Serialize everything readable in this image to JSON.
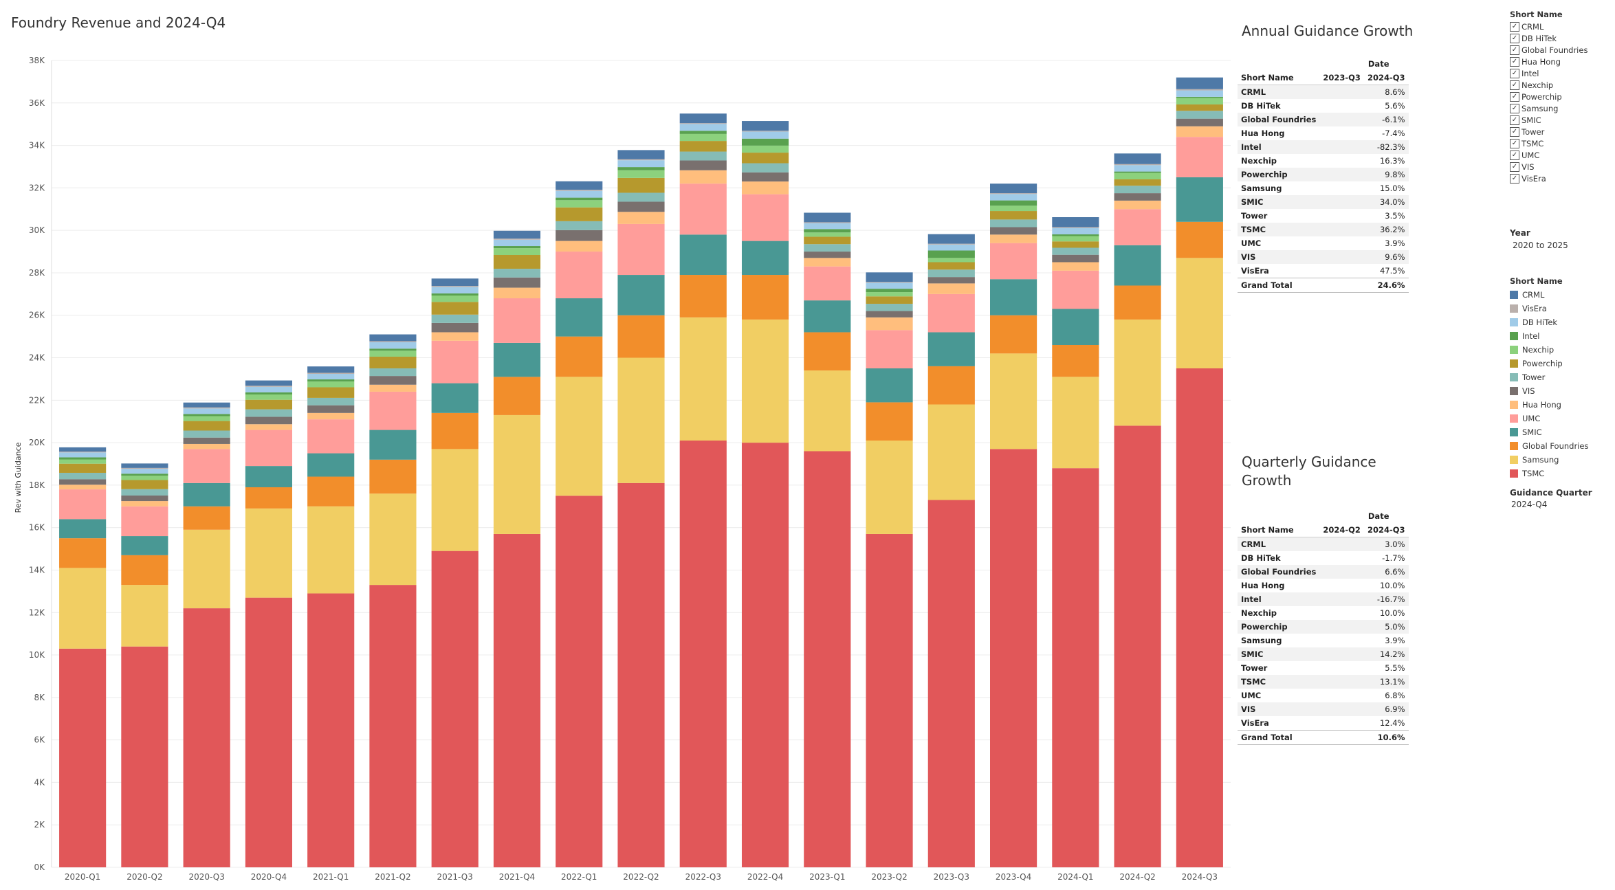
{
  "chart_data": {
    "type": "bar",
    "stacked": true,
    "title": "Foundry Revenue and 2024-Q4",
    "xlabel": "",
    "ylabel": "Rev with Guidance",
    "ylim": [
      0,
      38000
    ],
    "yticks": [
      0,
      2000,
      4000,
      6000,
      8000,
      10000,
      12000,
      14000,
      16000,
      18000,
      20000,
      22000,
      24000,
      26000,
      28000,
      30000,
      32000,
      34000,
      36000,
      38000
    ],
    "ytick_labels": [
      "0K",
      "2K",
      "4K",
      "6K",
      "8K",
      "10K",
      "12K",
      "14K",
      "16K",
      "18K",
      "20K",
      "22K",
      "24K",
      "26K",
      "28K",
      "30K",
      "32K",
      "34K",
      "36K",
      "38K"
    ],
    "categories": [
      "2020-Q1",
      "2020-Q2",
      "2020-Q3",
      "2020-Q4",
      "2021-Q1",
      "2021-Q2",
      "2021-Q3",
      "2021-Q4",
      "2022-Q1",
      "2022-Q2",
      "2022-Q3",
      "2022-Q4",
      "2023-Q1",
      "2023-Q2",
      "2023-Q3",
      "2023-Q4",
      "2024-Q1",
      "2024-Q2",
      "2024-Q3"
    ],
    "series": [
      {
        "name": "TSMC",
        "color": "#e15759",
        "values": [
          10300,
          10400,
          12200,
          12700,
          12900,
          13300,
          14900,
          15700,
          17500,
          18100,
          20100,
          20000,
          19600,
          15700,
          17300,
          19700,
          18800,
          20800,
          23500
        ]
      },
      {
        "name": "Samsung",
        "color": "#f1ce63",
        "values": [
          3800,
          2900,
          3700,
          4200,
          4100,
          4300,
          4800,
          5600,
          5600,
          5900,
          5800,
          5800,
          3800,
          4400,
          4500,
          4500,
          4300,
          5000,
          5200
        ]
      },
      {
        "name": "Global Foundries",
        "color": "#f28e2b",
        "values": [
          1400,
          1400,
          1100,
          1000,
          1400,
          1600,
          1700,
          1800,
          1900,
          2000,
          2000,
          2100,
          1800,
          1800,
          1800,
          1800,
          1500,
          1600,
          1700
        ]
      },
      {
        "name": "SMIC",
        "color": "#499894",
        "values": [
          900,
          900,
          1100,
          1000,
          1100,
          1400,
          1400,
          1600,
          1800,
          1900,
          1900,
          1600,
          1500,
          1600,
          1600,
          1700,
          1700,
          1900,
          2100
        ]
      },
      {
        "name": "UMC",
        "color": "#ff9d9a",
        "values": [
          1400,
          1400,
          1600,
          1700,
          1600,
          1800,
          2000,
          2100,
          2200,
          2400,
          2400,
          2200,
          1600,
          1800,
          1800,
          1700,
          1800,
          1700,
          1900
        ]
      },
      {
        "name": "Hua Hong",
        "color": "#ffbe7d",
        "values": [
          220,
          250,
          240,
          270,
          300,
          330,
          400,
          500,
          500,
          570,
          630,
          600,
          400,
          600,
          500,
          400,
          400,
          400,
          500
        ]
      },
      {
        "name": "VIS",
        "color": "#79706e",
        "values": [
          260,
          260,
          300,
          350,
          360,
          410,
          440,
          480,
          510,
          480,
          460,
          430,
          300,
          300,
          300,
          350,
          350,
          350,
          360
        ]
      },
      {
        "name": "Tower",
        "color": "#86bcb6",
        "values": [
          300,
          300,
          330,
          350,
          350,
          360,
          390,
          410,
          420,
          420,
          420,
          430,
          350,
          340,
          350,
          360,
          330,
          350,
          370
        ]
      },
      {
        "name": "Powerchip",
        "color": "#b6992d",
        "values": [
          430,
          430,
          450,
          450,
          500,
          550,
          600,
          650,
          650,
          700,
          500,
          500,
          350,
          350,
          350,
          400,
          300,
          300,
          300
        ]
      },
      {
        "name": "Nexchip",
        "color": "#8cd17d",
        "values": [
          200,
          200,
          230,
          250,
          270,
          280,
          300,
          320,
          340,
          360,
          330,
          330,
          200,
          200,
          200,
          250,
          250,
          300,
          300
        ]
      },
      {
        "name": "Intel",
        "color": "#59a14f",
        "values": [
          100,
          100,
          100,
          100,
          100,
          100,
          100,
          100,
          120,
          150,
          150,
          330,
          160,
          160,
          350,
          250,
          80,
          70,
          60
        ]
      },
      {
        "name": "DB HiTek",
        "color": "#a0cbe8",
        "values": [
          230,
          230,
          260,
          260,
          260,
          300,
          300,
          300,
          320,
          320,
          320,
          330,
          280,
          280,
          280,
          300,
          300,
          300,
          300
        ]
      },
      {
        "name": "VisEra",
        "color": "#bab0ac",
        "values": [
          40,
          40,
          50,
          50,
          50,
          50,
          50,
          50,
          50,
          50,
          40,
          40,
          40,
          40,
          40,
          40,
          40,
          50,
          60
        ]
      },
      {
        "name": "CRML",
        "color": "#4e79a7",
        "values": [
          200,
          210,
          230,
          250,
          300,
          320,
          350,
          370,
          400,
          430,
          450,
          460,
          450,
          450,
          450,
          450,
          470,
          500,
          550
        ]
      }
    ]
  },
  "annual": {
    "title": "Annual Guidance Growth",
    "date_label": "Date",
    "row_header": "Short Name",
    "col_a": "2023-Q3",
    "col_b": "2024-Q3",
    "rows": [
      {
        "name": "CRML",
        "a": "",
        "b": "8.6%"
      },
      {
        "name": "DB HiTek",
        "a": "",
        "b": "5.6%"
      },
      {
        "name": "Global Foundries",
        "a": "",
        "b": "-6.1%"
      },
      {
        "name": "Hua Hong",
        "a": "",
        "b": "-7.4%"
      },
      {
        "name": "Intel",
        "a": "",
        "b": "-82.3%"
      },
      {
        "name": "Nexchip",
        "a": "",
        "b": "16.3%"
      },
      {
        "name": "Powerchip",
        "a": "",
        "b": "9.8%"
      },
      {
        "name": "Samsung",
        "a": "",
        "b": "15.0%"
      },
      {
        "name": "SMIC",
        "a": "",
        "b": "34.0%"
      },
      {
        "name": "Tower",
        "a": "",
        "b": "3.5%"
      },
      {
        "name": "TSMC",
        "a": "",
        "b": "36.2%"
      },
      {
        "name": "UMC",
        "a": "",
        "b": "3.9%"
      },
      {
        "name": "VIS",
        "a": "",
        "b": "9.6%"
      },
      {
        "name": "VisEra",
        "a": "",
        "b": "47.5%"
      }
    ],
    "total": {
      "name": "Grand Total",
      "a": "",
      "b": "24.6%"
    }
  },
  "quarterly": {
    "title_line1": "Quarterly Guidance",
    "title_line2": "Growth",
    "date_label": "Date",
    "row_header": "Short Name",
    "col_a": "2024-Q2",
    "col_b": "2024-Q3",
    "rows": [
      {
        "name": "CRML",
        "a": "",
        "b": "3.0%"
      },
      {
        "name": "DB HiTek",
        "a": "",
        "b": "-1.7%"
      },
      {
        "name": "Global Foundries",
        "a": "",
        "b": "6.6%"
      },
      {
        "name": "Hua Hong",
        "a": "",
        "b": "10.0%"
      },
      {
        "name": "Intel",
        "a": "",
        "b": "-16.7%"
      },
      {
        "name": "Nexchip",
        "a": "",
        "b": "10.0%"
      },
      {
        "name": "Powerchip",
        "a": "",
        "b": "5.0%"
      },
      {
        "name": "Samsung",
        "a": "",
        "b": "3.9%"
      },
      {
        "name": "SMIC",
        "a": "",
        "b": "14.2%"
      },
      {
        "name": "Tower",
        "a": "",
        "b": "5.5%"
      },
      {
        "name": "TSMC",
        "a": "",
        "b": "13.1%"
      },
      {
        "name": "UMC",
        "a": "",
        "b": "6.8%"
      },
      {
        "name": "VIS",
        "a": "",
        "b": "6.9%"
      },
      {
        "name": "VisEra",
        "a": "",
        "b": "12.4%"
      }
    ],
    "total": {
      "name": "Grand Total",
      "a": "",
      "b": "10.6%"
    }
  },
  "filter": {
    "title": "Short Name",
    "items": [
      "CRML",
      "DB HiTek",
      "Global Foundries",
      "Hua Hong",
      "Intel",
      "Nexchip",
      "Powerchip",
      "Samsung",
      "SMIC",
      "Tower",
      "TSMC",
      "UMC",
      "VIS",
      "VisEra"
    ],
    "checkmark": "✓"
  },
  "year_filter": {
    "title": "Year",
    "value": "2020 to 2025"
  },
  "legend": {
    "title": "Short Name",
    "items": [
      {
        "name": "CRML",
        "color": "#4e79a7"
      },
      {
        "name": "VisEra",
        "color": "#bab0ac"
      },
      {
        "name": "DB HiTek",
        "color": "#a0cbe8"
      },
      {
        "name": "Intel",
        "color": "#59a14f"
      },
      {
        "name": "Nexchip",
        "color": "#8cd17d"
      },
      {
        "name": "Powerchip",
        "color": "#b6992d"
      },
      {
        "name": "Tower",
        "color": "#86bcb6"
      },
      {
        "name": "VIS",
        "color": "#79706e"
      },
      {
        "name": "Hua Hong",
        "color": "#ffbe7d"
      },
      {
        "name": "UMC",
        "color": "#ff9d9a"
      },
      {
        "name": "SMIC",
        "color": "#499894"
      },
      {
        "name": "Global Foundries",
        "color": "#f28e2b"
      },
      {
        "name": "Samsung",
        "color": "#f1ce63"
      },
      {
        "name": "TSMC",
        "color": "#e15759"
      }
    ]
  },
  "guidance_quarter": {
    "title": "Guidance Quarter",
    "value": "2024-Q4"
  }
}
